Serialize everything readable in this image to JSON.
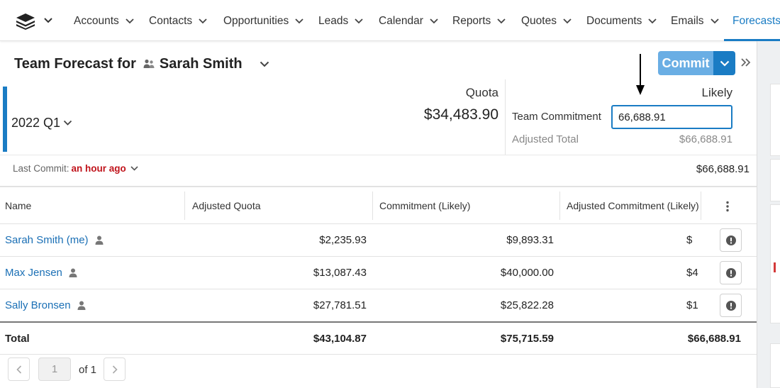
{
  "nav": {
    "items": [
      "Accounts",
      "Contacts",
      "Opportunities",
      "Leads",
      "Calendar",
      "Reports",
      "Quotes",
      "Documents",
      "Emails"
    ],
    "active": "Forecasts"
  },
  "header": {
    "title_prefix": "Team Forecast for",
    "user_name": "Sarah Smith",
    "commit_label": "Commit"
  },
  "summary": {
    "period": "2022 Q1",
    "quota_label": "Quota",
    "quota_value": "$34,483.90",
    "likely_label": "Likely",
    "team_commitment_label": "Team Commitment",
    "team_commitment_value": "66,688.91",
    "adjusted_total_label": "Adjusted Total",
    "adjusted_total_value": "$66,688.91",
    "last_commit_label": "Last Commit:",
    "last_commit_time": "an hour ago",
    "last_commit_total": "$66,688.91"
  },
  "table": {
    "columns": [
      "Name",
      "Adjusted Quota",
      "Commitment (Likely)",
      "Adjusted Commitment (Likely)"
    ],
    "rows": [
      {
        "name": "Sarah Smith (me)",
        "adjusted_quota": "$2,235.93",
        "commitment": "$9,893.31",
        "adjusted_commitment": "$"
      },
      {
        "name": "Max Jensen",
        "adjusted_quota": "$13,087.43",
        "commitment": "$40,000.00",
        "adjusted_commitment": "$4"
      },
      {
        "name": "Sally Bronsen",
        "adjusted_quota": "$27,781.51",
        "commitment": "$25,822.28",
        "adjusted_commitment": "$1"
      }
    ],
    "total": {
      "label": "Total",
      "adjusted_quota": "$43,104.87",
      "commitment": "$75,715.59",
      "adjusted_commitment": "$66,688.91"
    }
  },
  "pagination": {
    "current": "1",
    "of_label": "of 1"
  },
  "colors": {
    "accent": "#1a7cc4",
    "commit_button": "#6aaee4",
    "last_commit_time": "#c0131b"
  }
}
